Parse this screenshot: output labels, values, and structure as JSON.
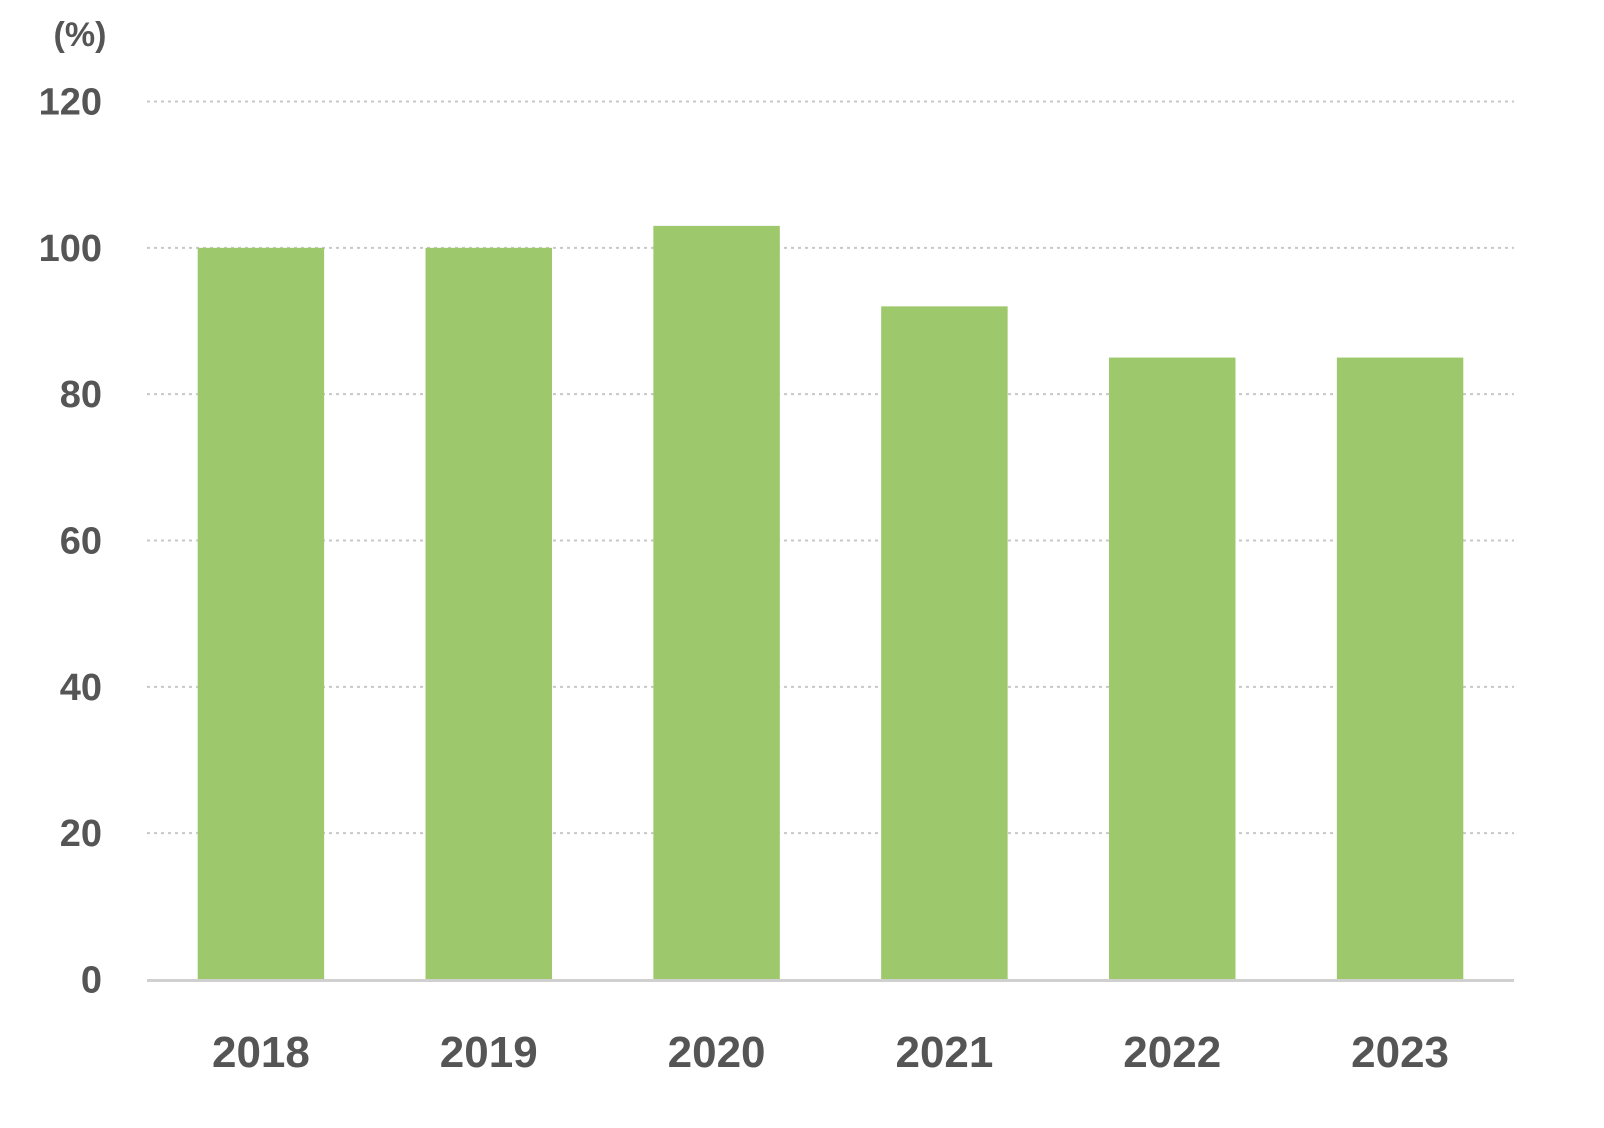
{
  "chart_data": {
    "type": "bar",
    "ylabel": "(%)",
    "categories": [
      "2018",
      "2019",
      "2020",
      "2021",
      "2022",
      "2023"
    ],
    "values": [
      100,
      100,
      103,
      92,
      85,
      85
    ],
    "ylim": [
      0,
      120
    ],
    "yticks": [
      0,
      20,
      40,
      60,
      80,
      100,
      120
    ],
    "ytick_labels": [
      "0",
      "20",
      "40",
      "60",
      "80",
      "100",
      "120"
    ],
    "grid": true,
    "grid_style": "dotted",
    "legend": "none",
    "colors": {
      "bar": "#9DC86B",
      "grid": "#C8C8C8",
      "axis": "#D0D0D0",
      "text": "#555555"
    }
  }
}
